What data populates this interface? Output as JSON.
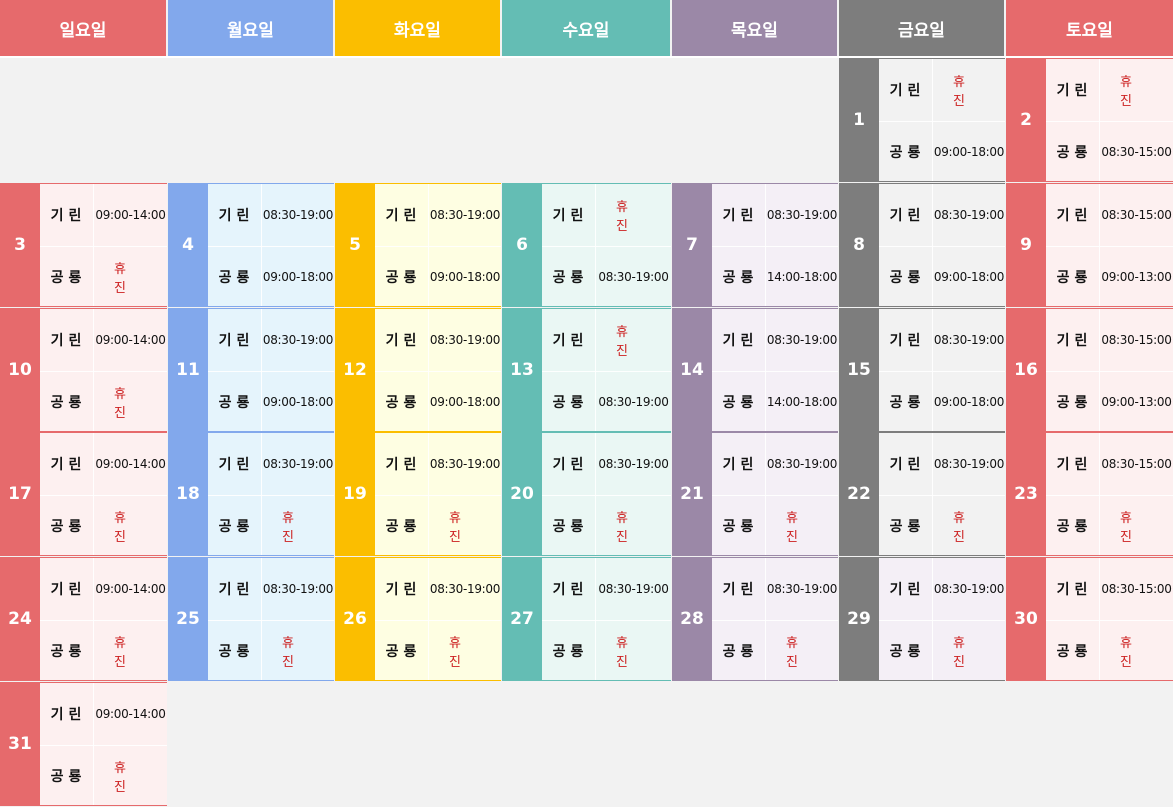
{
  "colors": {
    "sun": {
      "accent": "#e66a6c",
      "bg": "#fdf0f0"
    },
    "mon": {
      "accent": "#82a8ec",
      "bg": "#e5f4fc"
    },
    "tue": {
      "accent": "#fbbe00",
      "bg": "#fefee2"
    },
    "wed": {
      "accent": "#64bdb4",
      "bg": "#eaf7f4"
    },
    "thu": {
      "accent": "#9b88a7",
      "bg": "#f4eff6"
    },
    "fri": {
      "accent": "#7d7d7d",
      "bg": "#f2f2f2"
    },
    "sat": {
      "accent": "#e66a6c",
      "bg": "#fdf0f0"
    }
  },
  "header": [
    {
      "key": "sun",
      "label": "일요일"
    },
    {
      "key": "mon",
      "label": "월요일"
    },
    {
      "key": "tue",
      "label": "화요일"
    },
    {
      "key": "wed",
      "label": "수요일"
    },
    {
      "key": "thu",
      "label": "목요일"
    },
    {
      "key": "fri",
      "label": "금요일"
    },
    {
      "key": "sat",
      "label": "토요일"
    }
  ],
  "labels": {
    "row1": "기린",
    "row2": "공룡"
  },
  "closed_text": "휴진",
  "weeks": [
    [
      null,
      null,
      null,
      null,
      null,
      {
        "day": "1",
        "giraffe": "휴진",
        "dino": "09:00-18:00"
      },
      {
        "day": "2",
        "giraffe": "휴진",
        "dino": "08:30-15:00"
      }
    ],
    [
      {
        "day": "3",
        "giraffe": "09:00-14:00",
        "dino": "휴진"
      },
      {
        "day": "4",
        "giraffe": "08:30-19:00",
        "dino": "09:00-18:00"
      },
      {
        "day": "5",
        "giraffe": "08:30-19:00",
        "dino": "09:00-18:00"
      },
      {
        "day": "6",
        "giraffe": "휴진",
        "dino": "08:30-19:00"
      },
      {
        "day": "7",
        "giraffe": "08:30-19:00",
        "dino": "14:00-18:00"
      },
      {
        "day": "8",
        "giraffe": "08:30-19:00",
        "dino": "09:00-18:00"
      },
      {
        "day": "9",
        "giraffe": "08:30-15:00",
        "dino": "09:00-13:00"
      }
    ],
    [
      {
        "day": "10",
        "giraffe": "09:00-14:00",
        "dino": "휴진"
      },
      {
        "day": "11",
        "giraffe": "08:30-19:00",
        "dino": "09:00-18:00"
      },
      {
        "day": "12",
        "giraffe": "08:30-19:00",
        "dino": "09:00-18:00"
      },
      {
        "day": "13",
        "giraffe": "휴진",
        "dino": "08:30-19:00"
      },
      {
        "day": "14",
        "giraffe": "08:30-19:00",
        "dino": "14:00-18:00"
      },
      {
        "day": "15",
        "giraffe": "08:30-19:00",
        "dino": "09:00-18:00"
      },
      {
        "day": "16",
        "giraffe": "08:30-15:00",
        "dino": "09:00-13:00"
      }
    ],
    [
      {
        "day": "17",
        "giraffe": "09:00-14:00",
        "dino": "휴진"
      },
      {
        "day": "18",
        "giraffe": "08:30-19:00",
        "dino": "휴진"
      },
      {
        "day": "19",
        "giraffe": "08:30-19:00",
        "dino": "휴진"
      },
      {
        "day": "20",
        "giraffe": "08:30-19:00",
        "dino": "휴진"
      },
      {
        "day": "21",
        "giraffe": "08:30-19:00",
        "dino": "휴진"
      },
      {
        "day": "22",
        "giraffe": "08:30-19:00",
        "dino": "휴진"
      },
      {
        "day": "23",
        "giraffe": "08:30-15:00",
        "dino": "휴진"
      }
    ],
    [
      {
        "day": "24",
        "giraffe": "09:00-14:00",
        "dino": "휴진"
      },
      {
        "day": "25",
        "giraffe": "08:30-19:00",
        "dino": "휴진"
      },
      {
        "day": "26",
        "giraffe": "08:30-19:00",
        "dino": "휴진"
      },
      {
        "day": "27",
        "giraffe": "08:30-19:00",
        "dino": "휴진"
      },
      {
        "day": "28",
        "giraffe": "08:30-19:00",
        "dino": "휴진"
      },
      {
        "day": "29",
        "giraffe": "08:30-19:00",
        "dino": "휴진",
        "panel_color": "thu"
      },
      {
        "day": "30",
        "giraffe": "08:30-15:00",
        "dino": "휴진"
      }
    ],
    [
      {
        "day": "31",
        "giraffe": "09:00-14:00",
        "dino": "휴진"
      },
      null,
      null,
      null,
      null,
      null,
      null
    ]
  ]
}
